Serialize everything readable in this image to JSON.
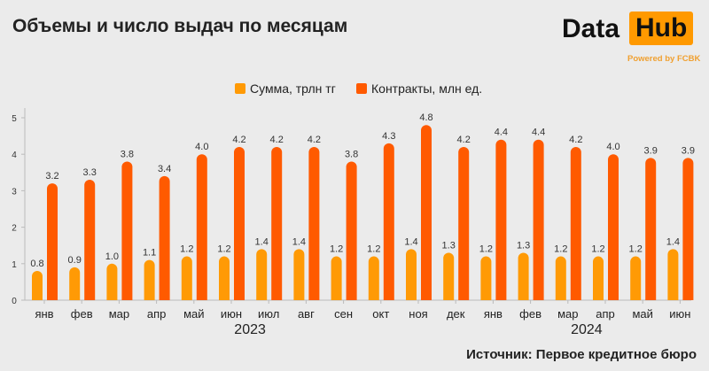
{
  "title": "Объемы и число выдач по месяцам",
  "logo": {
    "data": "Data",
    "hub": "Hub",
    "powered": "Powered by FCBK"
  },
  "source": "Источник: Первое кредитное бюро",
  "chart_data": {
    "type": "bar",
    "title": "Объемы и число выдач по месяцам",
    "categories": [
      "янв",
      "фев",
      "мар",
      "апр",
      "май",
      "июн",
      "июл",
      "авг",
      "сен",
      "окт",
      "ноя",
      "дек",
      "янв",
      "фев",
      "мар",
      "апр",
      "май",
      "июн"
    ],
    "year_groups": [
      {
        "label": "2023",
        "from": 0,
        "to": 11
      },
      {
        "label": "2024",
        "from": 12,
        "to": 17
      }
    ],
    "series": [
      {
        "name": "Сумма, трлн тг",
        "color": "#ff9a05",
        "values": [
          0.8,
          0.9,
          1.0,
          1.1,
          1.2,
          1.2,
          1.4,
          1.4,
          1.2,
          1.2,
          1.4,
          1.3,
          1.2,
          1.3,
          1.2,
          1.2,
          1.2,
          1.4
        ]
      },
      {
        "name": "Контракты, млн ед.",
        "color": "#ff5a00",
        "values": [
          3.2,
          3.3,
          3.8,
          3.4,
          4.0,
          4.2,
          4.2,
          4.2,
          3.8,
          4.3,
          4.8,
          4.2,
          4.4,
          4.4,
          4.2,
          4.0,
          3.9,
          3.9
        ]
      }
    ],
    "yticks": [
      0,
      1,
      2,
      3,
      4,
      5
    ],
    "ylim": [
      0,
      5
    ],
    "legend": "top-center",
    "grid": false
  }
}
